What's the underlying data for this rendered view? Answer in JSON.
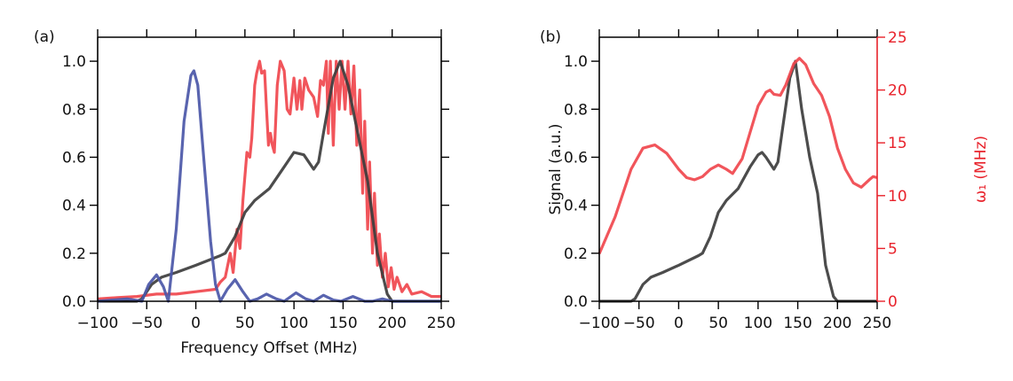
{
  "colors": {
    "signal": "#3d3d3d",
    "pulse_blue": "#4b57a8",
    "red": "#f0474d",
    "right_axis": "#e8222b"
  },
  "chart_data": [
    {
      "type": "line",
      "panel_label": "(a)",
      "xlabel": "Frequency Offset (MHz)",
      "ylabel": "",
      "xlim": [
        -100,
        250
      ],
      "ylim": [
        0,
        1.1
      ],
      "xticks": [
        -100,
        -50,
        0,
        50,
        100,
        150,
        200,
        250
      ],
      "xtick_labels": [
        "−100",
        "−50",
        "0",
        "50",
        "100",
        "150",
        "200",
        "250"
      ],
      "yticks": [
        0,
        0.2,
        0.4,
        0.6,
        0.8,
        1.0
      ],
      "ytick_labels": [
        "0.0",
        "0.2",
        "0.4",
        "0.6",
        "0.8",
        "1.0"
      ],
      "grid": false,
      "series": [
        {
          "color": "#f0474d",
          "x": [
            -100,
            -80,
            -60,
            -40,
            -20,
            0,
            20,
            25,
            30,
            35,
            38,
            42,
            45,
            48,
            52,
            55,
            57,
            60,
            62,
            65,
            67,
            70,
            72,
            74,
            76,
            78,
            80,
            83,
            86,
            90,
            93,
            96,
            100,
            103,
            106,
            108,
            111,
            115,
            120,
            124,
            127,
            130,
            133,
            135,
            137,
            140,
            143,
            146,
            149,
            152,
            155,
            158,
            161,
            164,
            167,
            170,
            172,
            175,
            177,
            180,
            182,
            185,
            187,
            190,
            193,
            196,
            199,
            202,
            205,
            210,
            215,
            220,
            230,
            240,
            250
          ],
          "y": [
            0.01,
            0.015,
            0.02,
            0.03,
            0.03,
            0.04,
            0.05,
            0.08,
            0.1,
            0.2,
            0.12,
            0.3,
            0.22,
            0.42,
            0.62,
            0.6,
            0.68,
            0.9,
            0.95,
            1.0,
            0.95,
            0.96,
            0.8,
            0.65,
            0.7,
            0.65,
            0.62,
            0.9,
            1.0,
            0.96,
            0.8,
            0.78,
            0.93,
            0.8,
            0.92,
            0.8,
            0.93,
            0.88,
            0.85,
            0.77,
            0.92,
            0.9,
            1.0,
            0.7,
            1.0,
            0.65,
            1.0,
            0.8,
            1.0,
            0.8,
            1.0,
            0.78,
            0.98,
            0.65,
            0.88,
            0.45,
            0.75,
            0.3,
            0.58,
            0.2,
            0.45,
            0.15,
            0.28,
            0.1,
            0.2,
            0.06,
            0.14,
            0.05,
            0.1,
            0.04,
            0.07,
            0.03,
            0.04,
            0.02,
            0.02
          ]
        },
        {
          "color": "#3d3d3d",
          "x": [
            -100,
            -60,
            -55,
            -45,
            -35,
            -20,
            0,
            25,
            30,
            40,
            50,
            60,
            75,
            90,
            100,
            110,
            120,
            125,
            130,
            140,
            147,
            155,
            165,
            175,
            185,
            195,
            200,
            250
          ],
          "y": [
            0,
            0,
            0.01,
            0.07,
            0.1,
            0.12,
            0.15,
            0.19,
            0.2,
            0.27,
            0.37,
            0.42,
            0.47,
            0.56,
            0.62,
            0.61,
            0.55,
            0.58,
            0.7,
            0.93,
            1.0,
            0.9,
            0.7,
            0.5,
            0.2,
            0.03,
            0,
            0
          ]
        },
        {
          "color": "#4b57a8",
          "x": [
            -100,
            -70,
            -55,
            -48,
            -40,
            -33,
            -28,
            -20,
            -12,
            -5,
            -2,
            2,
            8,
            15,
            20,
            25,
            32,
            40,
            48,
            55,
            63,
            72,
            82,
            90,
            102,
            112,
            120,
            130,
            140,
            148,
            160,
            172,
            180,
            190,
            200,
            250
          ],
          "y": [
            0,
            0.01,
            0,
            0.07,
            0.11,
            0.06,
            0,
            0.3,
            0.75,
            0.94,
            0.96,
            0.9,
            0.6,
            0.25,
            0.07,
            0,
            0.05,
            0.09,
            0.04,
            0,
            0.01,
            0.03,
            0.01,
            0,
            0.035,
            0.01,
            0,
            0.025,
            0.005,
            0,
            0.02,
            0,
            0,
            0.01,
            0,
            0
          ]
        }
      ]
    },
    {
      "type": "line",
      "panel_label": "(b)",
      "xlabel": "",
      "ylabel": "Signal (a.u.)",
      "y2label": "ω₁ (MHz)",
      "xlim": [
        -100,
        250
      ],
      "ylim": [
        0,
        1.1
      ],
      "y2lim": [
        0,
        25
      ],
      "xticks": [
        -100,
        -50,
        0,
        50,
        100,
        150,
        200,
        250
      ],
      "xtick_labels": [
        "−100",
        "−50",
        "0",
        "50",
        "100",
        "150",
        "200",
        "250"
      ],
      "yticks": [
        0,
        0.2,
        0.4,
        0.6,
        0.8,
        1.0
      ],
      "ytick_labels": [
        "0.0",
        "0.2",
        "0.4",
        "0.6",
        "0.8",
        "1.0"
      ],
      "y2ticks": [
        0,
        5,
        10,
        15,
        20,
        25
      ],
      "y2tick_labels": [
        "0",
        "5",
        "10",
        "15",
        "20",
        "25"
      ],
      "grid": false,
      "series": [
        {
          "color": "#3d3d3d",
          "axis": "left",
          "x": [
            -100,
            -60,
            -55,
            -45,
            -35,
            -20,
            0,
            25,
            30,
            40,
            50,
            60,
            75,
            90,
            100,
            105,
            110,
            120,
            125,
            130,
            140,
            147,
            155,
            165,
            175,
            185,
            195,
            200,
            250
          ],
          "y": [
            0,
            0,
            0.01,
            0.07,
            0.1,
            0.12,
            0.15,
            0.19,
            0.2,
            0.27,
            0.37,
            0.42,
            0.47,
            0.56,
            0.61,
            0.62,
            0.6,
            0.55,
            0.58,
            0.7,
            0.93,
            1.0,
            0.8,
            0.6,
            0.45,
            0.15,
            0.02,
            0,
            0
          ]
        },
        {
          "color": "#f0474d",
          "axis": "right",
          "x": [
            -100,
            -80,
            -60,
            -45,
            -30,
            -15,
            0,
            10,
            20,
            30,
            40,
            50,
            60,
            68,
            80,
            90,
            100,
            110,
            115,
            120,
            128,
            135,
            145,
            152,
            160,
            170,
            180,
            190,
            200,
            210,
            220,
            230,
            240,
            245,
            250
          ],
          "y": [
            4.5,
            8,
            12.5,
            14.5,
            14.8,
            14,
            12.5,
            11.7,
            11.5,
            11.8,
            12.5,
            12.9,
            12.5,
            12.1,
            13.5,
            16,
            18.5,
            19.8,
            20,
            19.6,
            19.5,
            20.5,
            22.5,
            23,
            22.4,
            20.6,
            19.5,
            17.5,
            14.5,
            12.5,
            11.2,
            10.8,
            11.5,
            11.8,
            11.7
          ]
        }
      ]
    }
  ]
}
